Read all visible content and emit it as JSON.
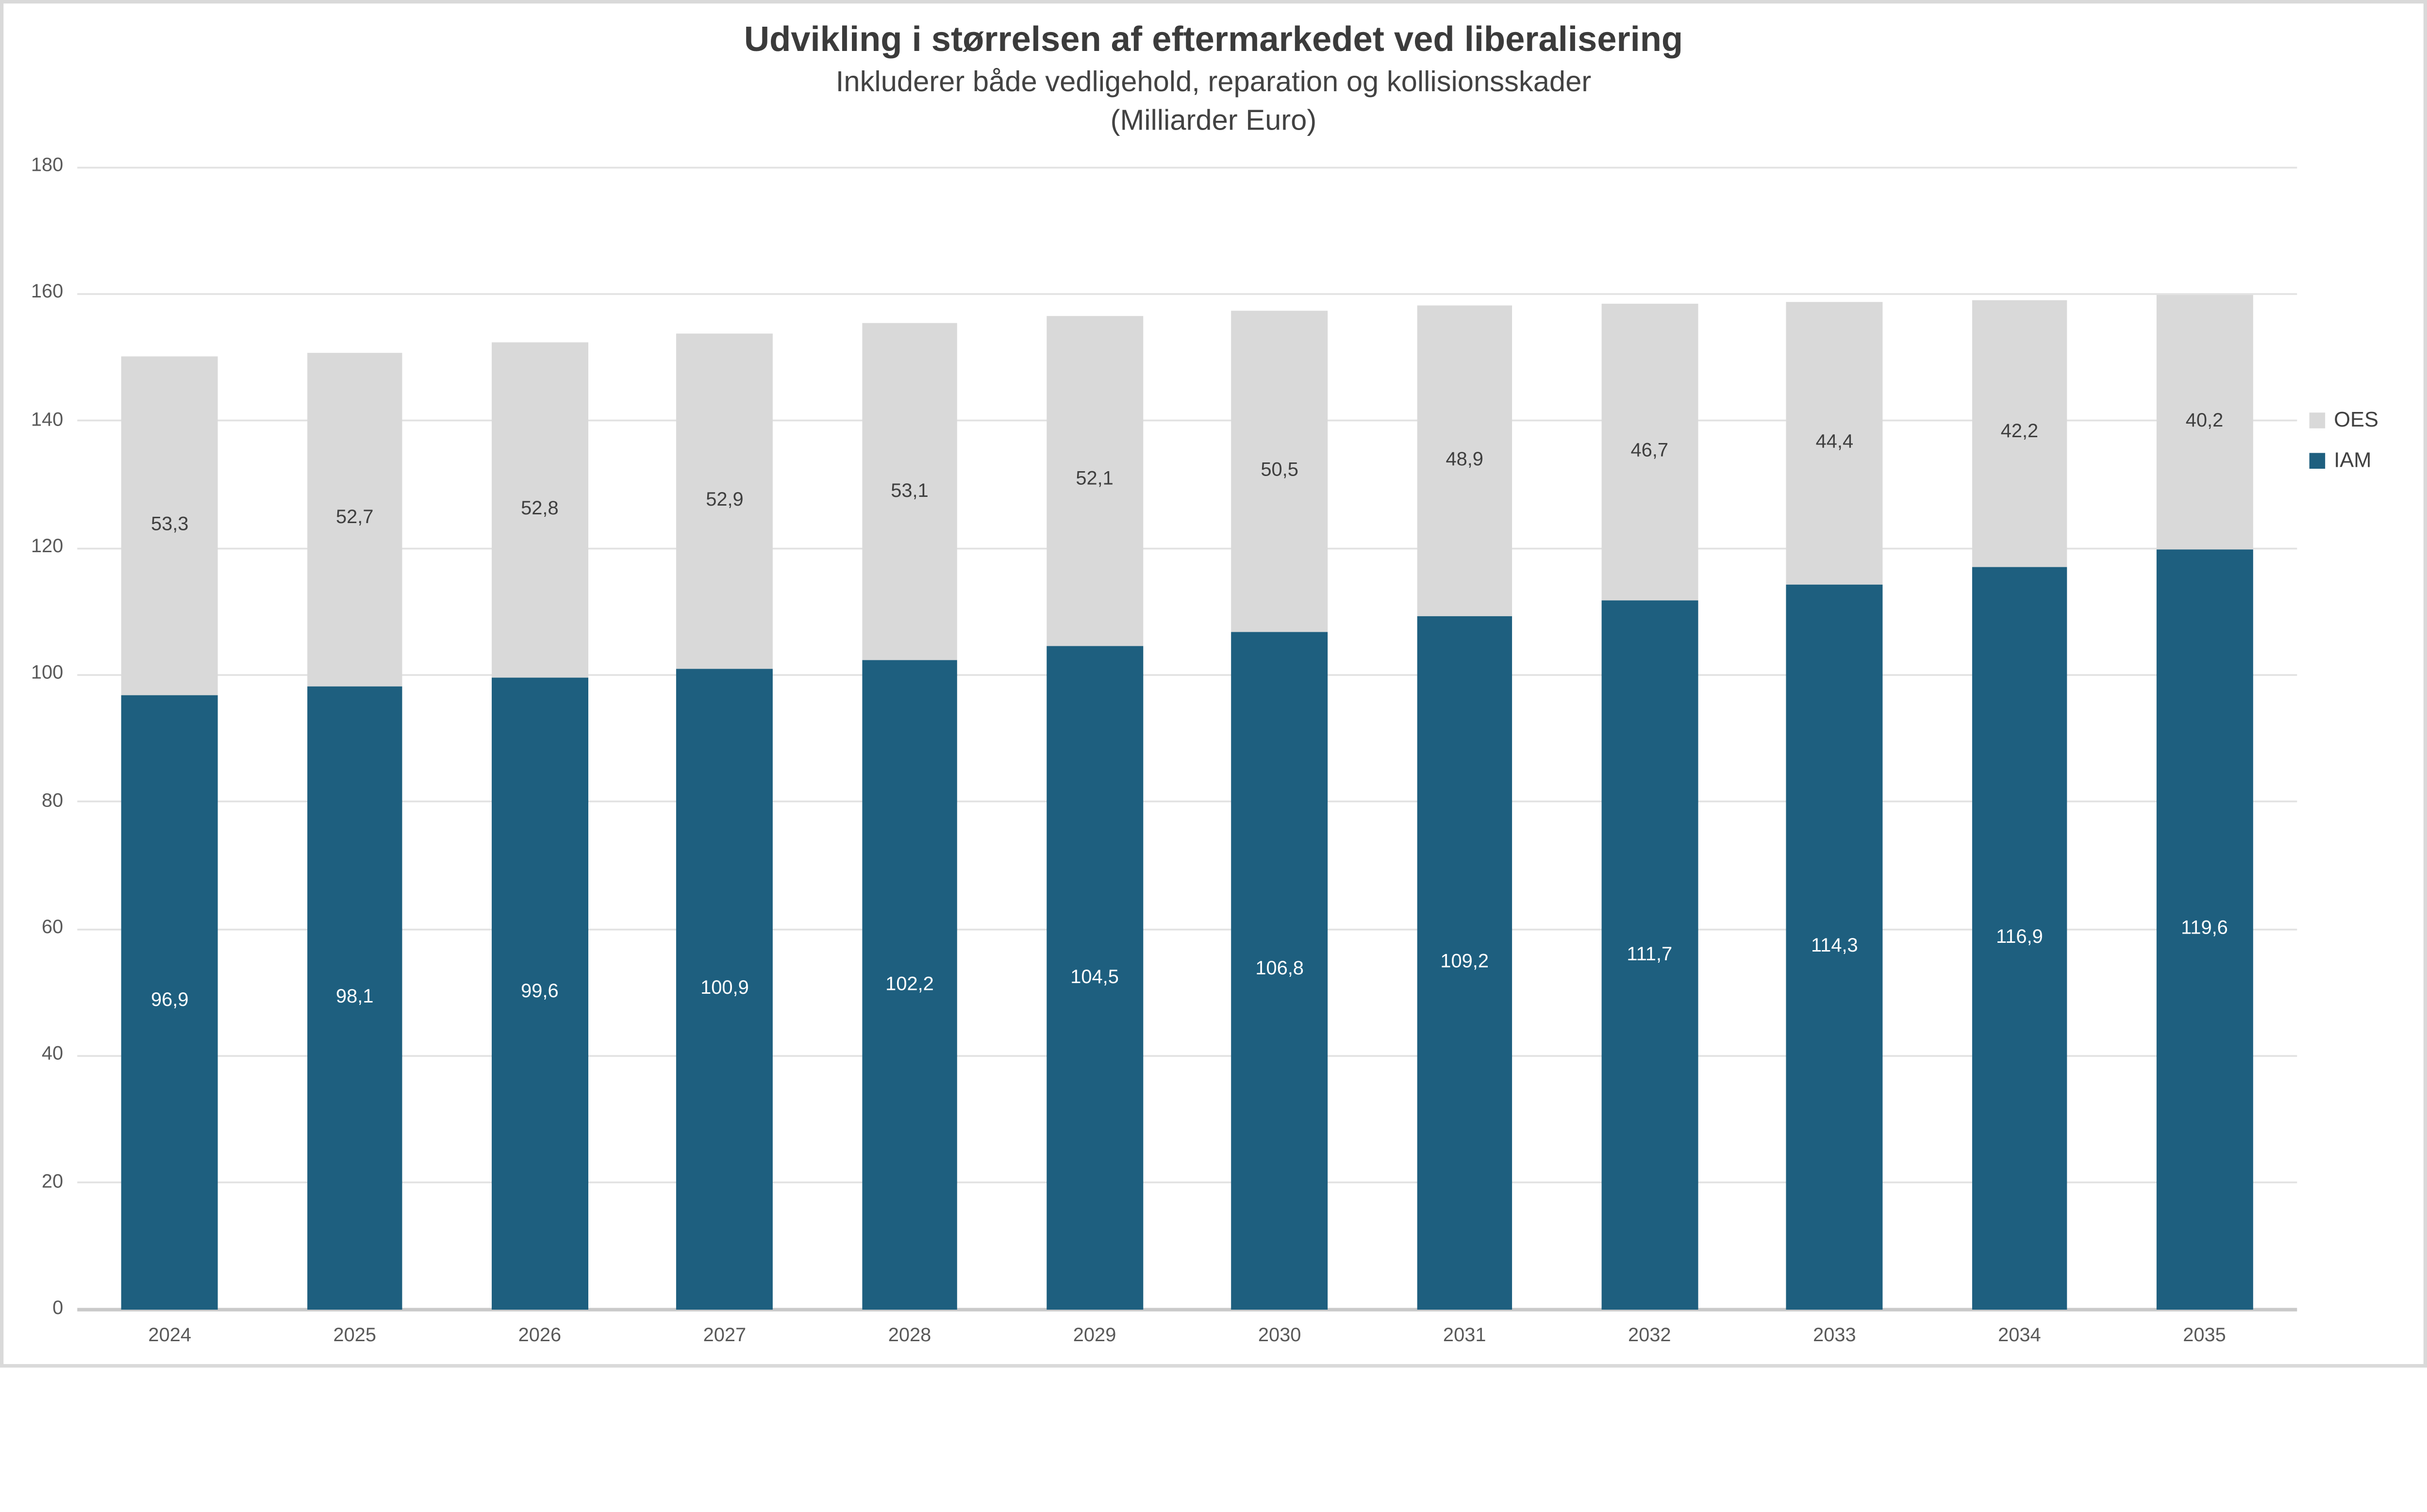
{
  "header": {
    "title": "Udvikling i størrelsen af eftermarkedet ved liberalisering",
    "subtitle": "Inkluderer både vedligehold, reparation og kollisionsskader",
    "subtitle_unit": "(Milliarder Euro)"
  },
  "legend": {
    "items": [
      {
        "label": "OES",
        "color": "#d9d9d9"
      },
      {
        "label": "IAM",
        "color": "#1e5f7f"
      }
    ],
    "position": "right"
  },
  "colors": {
    "iam_bar": "#1e5f7f",
    "oes_bar": "#d9d9d9",
    "iam_label_text": "#ffffff",
    "oes_label_text": "#3f3f3f",
    "axis_text": "#595959",
    "title_text": "#3b3b3b",
    "gridline": "#e2e2e2",
    "axis_line": "#c9c9c9",
    "chart_border": "#d9d9d9"
  },
  "chart_data": {
    "type": "bar",
    "stacked": true,
    "title": "Udvikling i størrelsen af eftermarkedet ved liberalisering",
    "subtitle": "Inkluderer både vedligehold, reparation og kollisionsskader",
    "unit": "(Milliarder Euro)",
    "xlabel": "",
    "ylabel": "",
    "ylim": [
      0,
      180
    ],
    "yticks": [
      0,
      20,
      40,
      60,
      80,
      100,
      120,
      140,
      160,
      180
    ],
    "grid": true,
    "legend_position": "right",
    "categories": [
      "2024",
      "2025",
      "2026",
      "2027",
      "2028",
      "2029",
      "2030",
      "2031",
      "2032",
      "2033",
      "2034",
      "2035"
    ],
    "series": [
      {
        "name": "IAM",
        "color": "#1e5f7f",
        "label_color": "#ffffff",
        "values": [
          96.9,
          98.1,
          99.6,
          100.9,
          102.2,
          104.5,
          106.8,
          109.2,
          111.7,
          114.3,
          116.9,
          119.6
        ],
        "labels": [
          "96,9",
          "98,1",
          "99,6",
          "100,9",
          "102,2",
          "104,5",
          "106,8",
          "109,2",
          "111,7",
          "114,3",
          "116,9",
          "119,6"
        ]
      },
      {
        "name": "OES",
        "color": "#d9d9d9",
        "label_color": "#3f3f3f",
        "values": [
          53.3,
          52.7,
          52.8,
          52.9,
          53.1,
          52.1,
          50.5,
          48.9,
          46.7,
          44.4,
          42.2,
          40.2
        ],
        "labels": [
          "53,3",
          "52,7",
          "52,8",
          "52,9",
          "53,1",
          "52,1",
          "50,5",
          "48,9",
          "46,7",
          "44,4",
          "42,2",
          "40,2"
        ]
      }
    ]
  }
}
